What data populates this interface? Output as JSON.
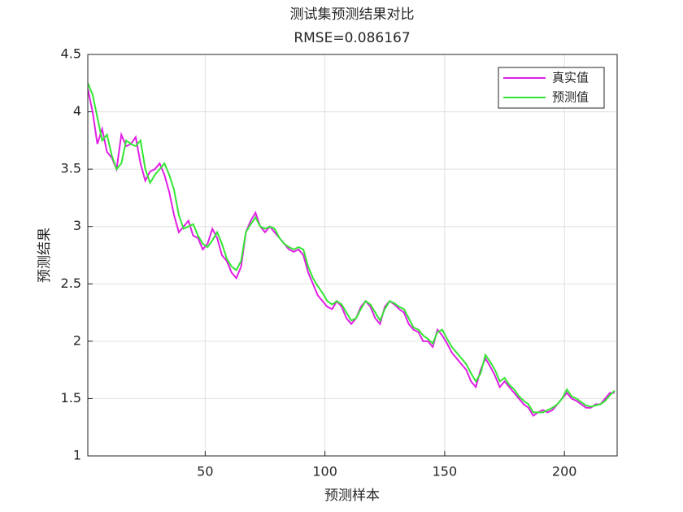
{
  "chart_data": {
    "type": "line",
    "title": "测试集预测结果对比",
    "subtitle": "RMSE=0.086167",
    "x_label": "预测样本",
    "y_label": "预测结果",
    "x": [
      1,
      3,
      5,
      7,
      9,
      11,
      13,
      15,
      17,
      19,
      21,
      23,
      25,
      27,
      29,
      31,
      33,
      35,
      37,
      39,
      41,
      43,
      45,
      47,
      49,
      51,
      53,
      55,
      57,
      59,
      61,
      63,
      65,
      67,
      69,
      71,
      73,
      75,
      77,
      79,
      81,
      83,
      85,
      87,
      89,
      91,
      93,
      95,
      97,
      99,
      101,
      103,
      105,
      107,
      109,
      111,
      113,
      115,
      117,
      119,
      121,
      123,
      125,
      127,
      129,
      131,
      133,
      135,
      137,
      139,
      141,
      143,
      145,
      147,
      149,
      151,
      153,
      155,
      157,
      159,
      161,
      163,
      165,
      167,
      169,
      171,
      173,
      175,
      177,
      179,
      181,
      183,
      185,
      187,
      189,
      191,
      193,
      195,
      197,
      199,
      201,
      203,
      205,
      207,
      209,
      211,
      213,
      215,
      217,
      219,
      221
    ],
    "series": [
      {
        "name": "真实值",
        "color": "#e11ee6",
        "values": [
          4.2,
          4.0,
          3.72,
          3.85,
          3.65,
          3.6,
          3.5,
          3.8,
          3.7,
          3.72,
          3.78,
          3.55,
          3.4,
          3.48,
          3.5,
          3.55,
          3.45,
          3.3,
          3.1,
          2.95,
          3.0,
          3.05,
          2.92,
          2.9,
          2.8,
          2.85,
          2.98,
          2.9,
          2.75,
          2.7,
          2.6,
          2.55,
          2.65,
          2.95,
          3.05,
          3.12,
          3.0,
          2.95,
          3.0,
          2.95,
          2.9,
          2.85,
          2.8,
          2.78,
          2.8,
          2.75,
          2.6,
          2.5,
          2.4,
          2.35,
          2.3,
          2.28,
          2.35,
          2.3,
          2.2,
          2.15,
          2.2,
          2.3,
          2.35,
          2.3,
          2.2,
          2.15,
          2.3,
          2.35,
          2.32,
          2.28,
          2.25,
          2.15,
          2.1,
          2.08,
          2.0,
          2.0,
          1.95,
          2.1,
          2.05,
          1.98,
          1.9,
          1.85,
          1.8,
          1.75,
          1.65,
          1.6,
          1.75,
          1.85,
          1.78,
          1.7,
          1.6,
          1.65,
          1.6,
          1.55,
          1.5,
          1.45,
          1.42,
          1.35,
          1.38,
          1.4,
          1.38,
          1.4,
          1.45,
          1.5,
          1.55,
          1.5,
          1.48,
          1.45,
          1.42,
          1.42,
          1.45,
          1.45,
          1.5,
          1.55,
          1.55
        ]
      },
      {
        "name": "预测值",
        "color": "#33e633",
        "values": [
          4.25,
          4.15,
          3.95,
          3.75,
          3.8,
          3.62,
          3.5,
          3.55,
          3.75,
          3.72,
          3.7,
          3.75,
          3.5,
          3.38,
          3.45,
          3.5,
          3.55,
          3.45,
          3.32,
          3.1,
          2.98,
          3.0,
          3.02,
          2.92,
          2.85,
          2.82,
          2.88,
          2.95,
          2.85,
          2.72,
          2.65,
          2.62,
          2.7,
          2.95,
          3.02,
          3.08,
          3.0,
          2.98,
          3.0,
          2.98,
          2.9,
          2.85,
          2.82,
          2.8,
          2.82,
          2.8,
          2.65,
          2.55,
          2.48,
          2.42,
          2.35,
          2.32,
          2.35,
          2.32,
          2.25,
          2.18,
          2.2,
          2.28,
          2.35,
          2.32,
          2.25,
          2.18,
          2.28,
          2.35,
          2.33,
          2.3,
          2.28,
          2.2,
          2.12,
          2.1,
          2.05,
          2.02,
          1.98,
          2.08,
          2.1,
          2.02,
          1.95,
          1.9,
          1.85,
          1.8,
          1.72,
          1.65,
          1.72,
          1.88,
          1.82,
          1.75,
          1.65,
          1.68,
          1.62,
          1.58,
          1.52,
          1.48,
          1.45,
          1.38,
          1.38,
          1.38,
          1.4,
          1.42,
          1.45,
          1.5,
          1.58,
          1.52,
          1.5,
          1.47,
          1.44,
          1.43,
          1.44,
          1.45,
          1.48,
          1.53,
          1.57
        ]
      }
    ],
    "xlim": [
      1,
      222
    ],
    "xticks": [
      50,
      100,
      150,
      200
    ],
    "ylim": [
      1,
      4.5
    ],
    "yticks": [
      1,
      1.5,
      2,
      2.5,
      3,
      3.5,
      4,
      4.5
    ],
    "grid": true,
    "legend": "northeast"
  }
}
